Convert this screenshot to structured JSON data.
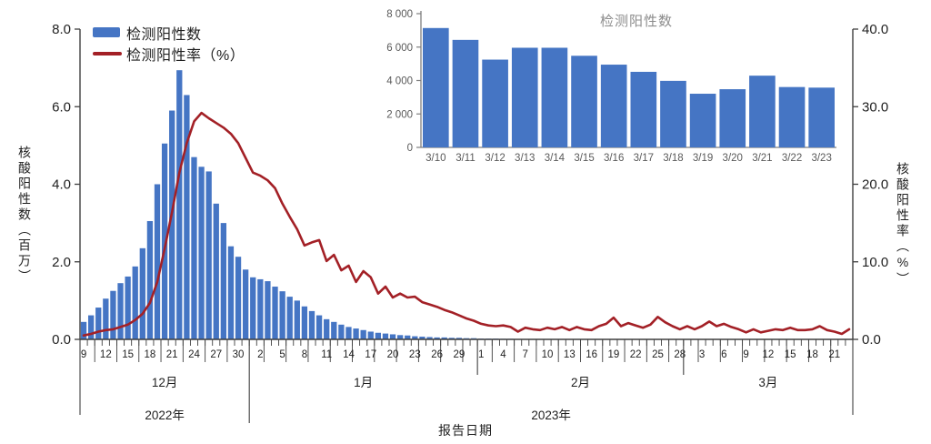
{
  "colors": {
    "bar_blue": "#4575c4",
    "line_red": "#a32026",
    "axis_dark": "#3f3f3f",
    "tick_text": "#1f1f1f",
    "inset_gray": "#7f7f7f",
    "inset_text": "#595959",
    "inset_title_gray": "#8c8c8c"
  },
  "chart_data": [
    {
      "type": "bar",
      "name": "main-combo-chart",
      "title": "",
      "xlabel": "报告日期",
      "ylabel_left": "核酸阳性数（百万）",
      "ylabel_right": "核酸阳性率（%）",
      "start_date": "2022-12-09",
      "end_date": "2023-03-23",
      "left_axis_ticks": [
        "0.0",
        "2.0",
        "4.0",
        "6.0",
        "8.0"
      ],
      "left_axis_range": [
        0,
        8
      ],
      "right_axis_ticks": [
        "0.0",
        "10.0",
        "20.0",
        "30.0",
        "40.0"
      ],
      "right_axis_range": [
        0,
        40
      ],
      "day_labels": [
        {
          "i": 0,
          "t": "9"
        },
        {
          "i": 3,
          "t": "12"
        },
        {
          "i": 6,
          "t": "15"
        },
        {
          "i": 9,
          "t": "18"
        },
        {
          "i": 12,
          "t": "21"
        },
        {
          "i": 15,
          "t": "24"
        },
        {
          "i": 18,
          "t": "27"
        },
        {
          "i": 21,
          "t": "30"
        },
        {
          "i": 24,
          "t": "2"
        },
        {
          "i": 27,
          "t": "5"
        },
        {
          "i": 30,
          "t": "8"
        },
        {
          "i": 33,
          "t": "11"
        },
        {
          "i": 36,
          "t": "14"
        },
        {
          "i": 39,
          "t": "17"
        },
        {
          "i": 42,
          "t": "20"
        },
        {
          "i": 45,
          "t": "23"
        },
        {
          "i": 48,
          "t": "26"
        },
        {
          "i": 51,
          "t": "29"
        },
        {
          "i": 54,
          "t": "1"
        },
        {
          "i": 57,
          "t": "4"
        },
        {
          "i": 60,
          "t": "7"
        },
        {
          "i": 63,
          "t": "10"
        },
        {
          "i": 66,
          "t": "13"
        },
        {
          "i": 69,
          "t": "16"
        },
        {
          "i": 72,
          "t": "19"
        },
        {
          "i": 75,
          "t": "22"
        },
        {
          "i": 78,
          "t": "25"
        },
        {
          "i": 81,
          "t": "28"
        },
        {
          "i": 84,
          "t": "3"
        },
        {
          "i": 87,
          "t": "6"
        },
        {
          "i": 90,
          "t": "9"
        },
        {
          "i": 93,
          "t": "12"
        },
        {
          "i": 96,
          "t": "15"
        },
        {
          "i": 99,
          "t": "18"
        },
        {
          "i": 102,
          "t": "21"
        }
      ],
      "months": [
        {
          "label": "12月",
          "start": 0,
          "end": 23
        },
        {
          "label": "1月",
          "start": 23,
          "end": 54
        },
        {
          "label": "2月",
          "start": 54,
          "end": 82
        },
        {
          "label": "3月",
          "start": 82,
          "end": 105
        }
      ],
      "years": [
        {
          "label": "2022年",
          "start": 0,
          "end": 23
        },
        {
          "label": "2023年",
          "start": 23,
          "end": 105
        }
      ],
      "series": [
        {
          "name": "检测阳性数",
          "kind": "bar",
          "axis": "left",
          "unit": "百万",
          "values": [
            0.45,
            0.62,
            0.82,
            1.05,
            1.25,
            1.45,
            1.62,
            1.88,
            2.35,
            3.05,
            4.0,
            5.05,
            5.9,
            6.94,
            6.3,
            4.7,
            4.45,
            4.33,
            3.5,
            3.0,
            2.4,
            2.13,
            1.8,
            1.6,
            1.55,
            1.5,
            1.36,
            1.24,
            1.1,
            1.0,
            0.85,
            0.73,
            0.62,
            0.52,
            0.45,
            0.38,
            0.32,
            0.28,
            0.24,
            0.2,
            0.17,
            0.15,
            0.13,
            0.11,
            0.1,
            0.08,
            0.07,
            0.06,
            0.05,
            0.05,
            0.04,
            0.04,
            0.03,
            0.03,
            0.02,
            0.02,
            0.02,
            0.015,
            0.015,
            0.012,
            0.012,
            0.011,
            0.011,
            0.01,
            0.01,
            0.01,
            0.009,
            0.009,
            0.008,
            0.008,
            0.008,
            0.007,
            0.007,
            0.007,
            0.006,
            0.006,
            0.006,
            0.006,
            0.005,
            0.005,
            0.005,
            0.005,
            0.008,
            0.0078,
            0.0075,
            0.0073,
            0.007,
            0.0068,
            0.0067,
            0.0069,
            0.0072,
            0.00714,
            0.00643,
            0.00525,
            0.00596,
            0.00596,
            0.00548,
            0.00495,
            0.00452,
            0.00398,
            0.00321,
            0.00348,
            0.00429,
            0.00361,
            0.003575
          ]
        },
        {
          "name": "检测阳性率（%）",
          "kind": "line",
          "axis": "right",
          "unit": "%",
          "values": [
            0.5,
            0.7,
            1.0,
            1.2,
            1.3,
            1.6,
            1.9,
            2.5,
            3.3,
            4.7,
            7.4,
            11.7,
            16.4,
            21.5,
            25.3,
            28.1,
            29.2,
            28.5,
            27.9,
            27.3,
            26.5,
            25.3,
            23.4,
            21.5,
            21.1,
            20.5,
            19.5,
            17.5,
            15.8,
            14.2,
            12.1,
            12.5,
            12.8,
            10.1,
            10.9,
            8.9,
            9.5,
            7.4,
            8.8,
            8.0,
            5.9,
            6.8,
            5.4,
            5.9,
            5.4,
            5.5,
            4.8,
            4.5,
            4.2,
            3.8,
            3.5,
            3.1,
            2.7,
            2.4,
            2.0,
            1.8,
            1.7,
            1.8,
            1.6,
            1.0,
            1.5,
            1.3,
            1.2,
            1.5,
            1.3,
            1.6,
            1.2,
            1.6,
            1.3,
            1.2,
            1.7,
            2.0,
            2.8,
            1.7,
            2.1,
            1.8,
            1.5,
            1.9,
            2.9,
            2.2,
            1.7,
            1.3,
            1.7,
            1.3,
            1.7,
            2.3,
            1.7,
            2.0,
            1.6,
            1.3,
            0.9,
            1.3,
            0.9,
            1.1,
            1.3,
            1.2,
            1.5,
            1.2,
            1.2,
            1.3,
            1.7,
            1.2,
            1.0,
            0.7,
            1.3
          ]
        }
      ]
    },
    {
      "type": "bar",
      "name": "inset-bar-chart",
      "title": "检测阳性数",
      "categories": [
        "3/10",
        "3/11",
        "3/12",
        "3/13",
        "3/14",
        "3/15",
        "3/16",
        "3/17",
        "3/18",
        "3/19",
        "3/20",
        "3/21",
        "3/22",
        "3/23"
      ],
      "values": [
        7140,
        6430,
        5250,
        5960,
        5960,
        5480,
        4950,
        4520,
        3980,
        3210,
        3480,
        4290,
        3610,
        3575
      ],
      "ylim": [
        0,
        8000
      ],
      "y_ticks": [
        "0",
        "2 000",
        "4 000",
        "6 000",
        "8 000"
      ]
    }
  ]
}
